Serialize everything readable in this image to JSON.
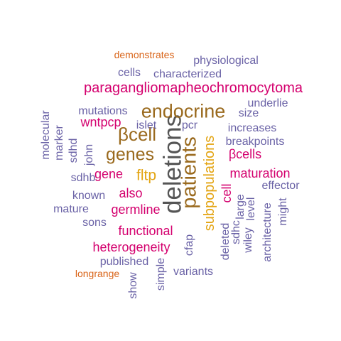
{
  "palette": {
    "magenta": "#D4006E",
    "brown": "#9A6A1E",
    "gold": "#E3A412",
    "purple": "#6A62A6",
    "orange": "#D9651A",
    "gray": "#555555"
  },
  "words": [
    {
      "text": "deletions",
      "color": "#555555",
      "weight": 10
    },
    {
      "text": "patients",
      "color": "#9A6A1E",
      "weight": 9
    },
    {
      "text": "endocrine",
      "color": "#9A6A1E",
      "weight": 8
    },
    {
      "text": "βcell",
      "color": "#9A6A1E",
      "weight": 8
    },
    {
      "text": "genes",
      "color": "#9A6A1E",
      "weight": 8
    },
    {
      "text": "subpopulations",
      "color": "#E3A412",
      "weight": 7
    },
    {
      "text": "fltp",
      "color": "#E3A412",
      "weight": 7
    },
    {
      "text": "paragangliomapheochromocytoma",
      "color": "#D4006E",
      "weight": 6
    },
    {
      "text": "maturation",
      "color": "#D4006E",
      "weight": 6
    },
    {
      "text": "βcells",
      "color": "#D4006E",
      "weight": 6
    },
    {
      "text": "functional",
      "color": "#D4006E",
      "weight": 6
    },
    {
      "text": "heterogeneity",
      "color": "#D4006E",
      "weight": 6
    },
    {
      "text": "germline",
      "color": "#D4006E",
      "weight": 6
    },
    {
      "text": "also",
      "color": "#D4006E",
      "weight": 6
    },
    {
      "text": "wntpcp",
      "color": "#D4006E",
      "weight": 6
    },
    {
      "text": "gene",
      "color": "#D4006E",
      "weight": 6
    },
    {
      "text": "cell",
      "color": "#D4006E",
      "weight": 6
    },
    {
      "text": "physiological",
      "color": "#6A62A6",
      "weight": 4
    },
    {
      "text": "characterized",
      "color": "#6A62A6",
      "weight": 4
    },
    {
      "text": "cells",
      "color": "#6A62A6",
      "weight": 4
    },
    {
      "text": "mutations",
      "color": "#6A62A6",
      "weight": 4
    },
    {
      "text": "underlie",
      "color": "#6A62A6",
      "weight": 4
    },
    {
      "text": "size",
      "color": "#6A62A6",
      "weight": 4
    },
    {
      "text": "islet",
      "color": "#6A62A6",
      "weight": 4
    },
    {
      "text": "pcr",
      "color": "#6A62A6",
      "weight": 4
    },
    {
      "text": "increases",
      "color": "#6A62A6",
      "weight": 4
    },
    {
      "text": "breakpoints",
      "color": "#6A62A6",
      "weight": 4
    },
    {
      "text": "molecular",
      "color": "#6A62A6",
      "weight": 4
    },
    {
      "text": "marker",
      "color": "#6A62A6",
      "weight": 4
    },
    {
      "text": "sdhd",
      "color": "#6A62A6",
      "weight": 4
    },
    {
      "text": "john",
      "color": "#6A62A6",
      "weight": 4
    },
    {
      "text": "sdhb",
      "color": "#6A62A6",
      "weight": 4
    },
    {
      "text": "known",
      "color": "#6A62A6",
      "weight": 4
    },
    {
      "text": "mature",
      "color": "#6A62A6",
      "weight": 4
    },
    {
      "text": "sons",
      "color": "#6A62A6",
      "weight": 4
    },
    {
      "text": "effector",
      "color": "#6A62A6",
      "weight": 4
    },
    {
      "text": "large",
      "color": "#6A62A6",
      "weight": 4
    },
    {
      "text": "level",
      "color": "#6A62A6",
      "weight": 4
    },
    {
      "text": "might",
      "color": "#6A62A6",
      "weight": 4
    },
    {
      "text": "architecture",
      "color": "#6A62A6",
      "weight": 4
    },
    {
      "text": "wiley",
      "color": "#6A62A6",
      "weight": 4
    },
    {
      "text": "sdhc",
      "color": "#6A62A6",
      "weight": 4
    },
    {
      "text": "deleted",
      "color": "#6A62A6",
      "weight": 4
    },
    {
      "text": "cfap",
      "color": "#6A62A6",
      "weight": 4
    },
    {
      "text": "published",
      "color": "#6A62A6",
      "weight": 4
    },
    {
      "text": "variants",
      "color": "#6A62A6",
      "weight": 4
    },
    {
      "text": "simple",
      "color": "#6A62A6",
      "weight": 4
    },
    {
      "text": "show",
      "color": "#6A62A6",
      "weight": 4
    },
    {
      "text": "demonstrates",
      "color": "#D9651A",
      "weight": 3
    },
    {
      "text": "longrange",
      "color": "#D9651A",
      "weight": 3
    }
  ]
}
